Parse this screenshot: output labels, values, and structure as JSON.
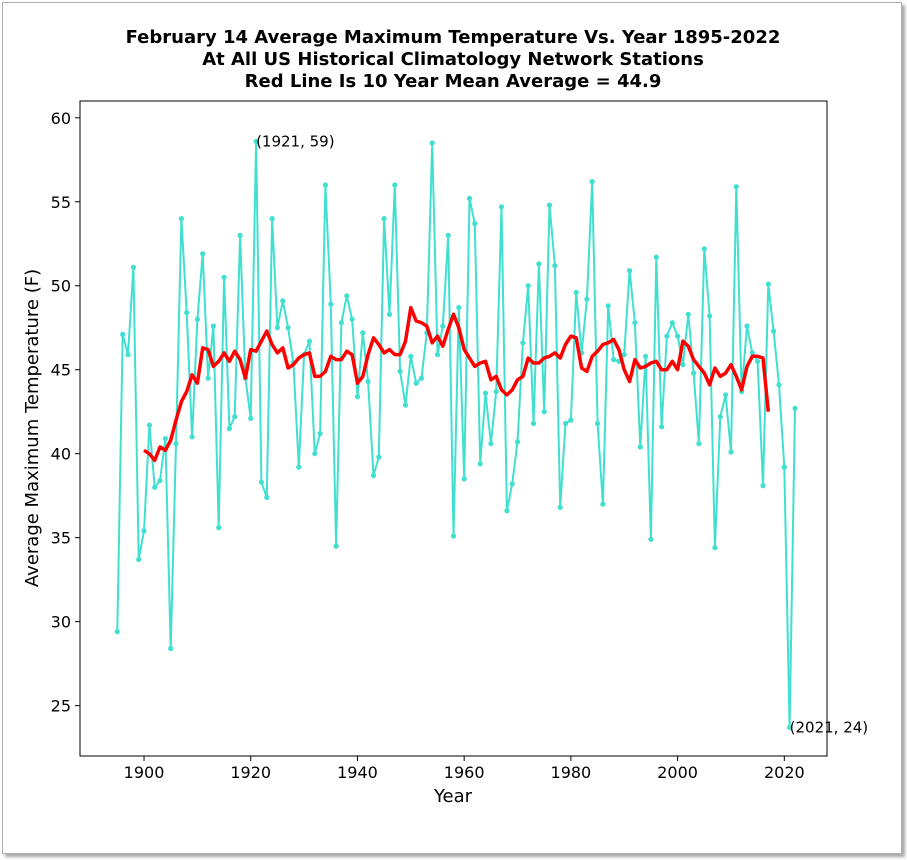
{
  "chart_data": {
    "type": "line",
    "title_lines": [
      "February 14 Average Maximum Temperature Vs. Year 1895-2022",
      "At All US Historical Climatology Network Stations",
      "Red Line Is 10 Year Mean  Average = 44.9"
    ],
    "xlabel": "Year",
    "ylabel": "Average Maximum Temperature (F)",
    "xlim": [
      1888,
      2028
    ],
    "ylim": [
      22,
      61
    ],
    "xticks": [
      1900,
      1920,
      1940,
      1960,
      1980,
      2000,
      2020
    ],
    "yticks": [
      25,
      30,
      35,
      40,
      45,
      50,
      55,
      60
    ],
    "grid": false,
    "colors": {
      "series": "#40e0d0",
      "mean": "#ff0000"
    },
    "series": [
      {
        "x": [
          1895,
          1896,
          1897,
          1898,
          1899,
          1900,
          1901,
          1902,
          1903,
          1904,
          1905,
          1906,
          1907,
          1908,
          1909,
          1910,
          1911,
          1912,
          1913,
          1914,
          1915,
          1916,
          1917,
          1918,
          1919,
          1920,
          1921,
          1922,
          1923,
          1924,
          1925,
          1926,
          1927,
          1928,
          1929,
          1930,
          1931,
          1932,
          1933,
          1934,
          1935,
          1936,
          1937,
          1938,
          1939,
          1940,
          1941,
          1942,
          1943,
          1944,
          1945,
          1946,
          1947,
          1948,
          1949,
          1950,
          1951,
          1952,
          1953,
          1954,
          1955,
          1956,
          1957,
          1958,
          1959,
          1960,
          1961,
          1962,
          1963,
          1964,
          1965,
          1966,
          1967,
          1968,
          1969,
          1970,
          1971,
          1972,
          1973,
          1974,
          1975,
          1976,
          1977,
          1978,
          1979,
          1980,
          1981,
          1982,
          1983,
          1984,
          1985,
          1986,
          1987,
          1988,
          1989,
          1990,
          1991,
          1992,
          1993,
          1994,
          1995,
          1996,
          1997,
          1998,
          1999,
          2000,
          2001,
          2002,
          2003,
          2004,
          2005,
          2006,
          2007,
          2008,
          2009,
          2010,
          2011,
          2012,
          2013,
          2014,
          2015,
          2016,
          2017,
          2018,
          2019,
          2020,
          2021,
          2022
        ],
        "values": [
          29.4,
          47.1,
          45.9,
          51.1,
          33.7,
          35.4,
          41.7,
          38.0,
          38.4,
          40.9,
          28.4,
          40.6,
          54.0,
          48.4,
          41.0,
          48.0,
          51.9,
          44.5,
          47.6,
          35.6,
          50.5,
          41.5,
          42.2,
          53.0,
          44.5,
          42.1,
          58.6,
          38.3,
          37.4,
          54.0,
          47.5,
          49.1,
          47.5,
          45.4,
          39.2,
          45.9,
          46.7,
          40.0,
          41.2,
          56.0,
          48.9,
          34.5,
          47.8,
          49.4,
          48.0,
          43.4,
          47.2,
          44.3,
          38.7,
          39.8,
          54.0,
          48.3,
          56.0,
          44.9,
          42.9,
          45.8,
          44.2,
          44.5,
          47.2,
          58.5,
          45.9,
          47.6,
          53.0,
          35.1,
          48.7,
          38.5,
          55.2,
          53.7,
          39.4,
          43.6,
          40.6,
          43.7,
          54.7,
          36.6,
          38.2,
          40.7,
          46.6,
          50.0,
          41.8,
          51.3,
          42.5,
          54.8,
          51.2,
          36.8,
          41.8,
          42.0,
          49.6,
          46.0,
          49.2,
          56.2,
          41.8,
          37.0,
          48.8,
          45.6,
          45.5,
          45.9,
          50.9,
          47.8,
          40.4,
          45.8,
          34.9,
          51.7,
          41.6,
          47.0,
          47.8,
          47.0,
          45.3,
          48.3,
          44.8,
          40.6,
          52.2,
          48.2,
          34.4,
          42.2,
          43.5,
          40.1,
          55.9,
          43.7,
          47.6,
          46.0,
          45.5,
          38.1,
          50.1,
          47.3,
          44.1,
          39.2,
          23.7,
          42.7
        ]
      },
      {
        "x": [
          1900,
          1901,
          1902,
          1903,
          1904,
          1905,
          1906,
          1907,
          1908,
          1909,
          1910,
          1911,
          1912,
          1913,
          1914,
          1915,
          1916,
          1917,
          1918,
          1919,
          1920,
          1921,
          1922,
          1923,
          1924,
          1925,
          1926,
          1927,
          1928,
          1929,
          1930,
          1931,
          1932,
          1933,
          1934,
          1935,
          1936,
          1937,
          1938,
          1939,
          1940,
          1941,
          1942,
          1943,
          1944,
          1945,
          1946,
          1947,
          1948,
          1949,
          1950,
          1951,
          1952,
          1953,
          1954,
          1955,
          1956,
          1957,
          1958,
          1959,
          1960,
          1961,
          1962,
          1963,
          1964,
          1965,
          1966,
          1967,
          1968,
          1969,
          1970,
          1971,
          1972,
          1973,
          1974,
          1975,
          1976,
          1977,
          1978,
          1979,
          1980,
          1981,
          1982,
          1983,
          1984,
          1985,
          1986,
          1987,
          1988,
          1989,
          1990,
          1991,
          1992,
          1993,
          1994,
          1995,
          1996,
          1997,
          1998,
          1999,
          2000,
          2001,
          2002,
          2003,
          2004,
          2005,
          2006,
          2007,
          2008,
          2009,
          2010,
          2011,
          2012,
          2013,
          2014,
          2015,
          2016,
          2017
        ],
        "values": [
          40.2,
          40.0,
          39.6,
          40.4,
          40.2,
          40.8,
          42.0,
          43.1,
          43.7,
          44.7,
          44.2,
          46.3,
          46.2,
          45.2,
          45.5,
          46.0,
          45.5,
          46.1,
          45.6,
          44.5,
          46.2,
          46.1,
          46.7,
          47.3,
          46.5,
          46.0,
          46.3,
          45.1,
          45.3,
          45.7,
          45.9,
          46.0,
          44.6,
          44.6,
          44.9,
          45.8,
          45.6,
          45.6,
          46.1,
          45.9,
          44.2,
          44.6,
          45.9,
          46.9,
          46.5,
          46.0,
          46.2,
          45.9,
          45.9,
          46.7,
          48.7,
          47.9,
          47.8,
          47.6,
          46.6,
          47.0,
          46.4,
          47.4,
          48.3,
          47.5,
          46.2,
          45.7,
          45.2,
          45.4,
          45.5,
          44.4,
          44.6,
          43.8,
          43.5,
          43.8,
          44.4,
          44.6,
          45.7,
          45.4,
          45.4,
          45.7,
          45.8,
          46.0,
          45.7,
          46.5,
          47.0,
          46.9,
          45.1,
          44.9,
          45.8,
          46.1,
          46.5,
          46.6,
          46.8,
          46.2,
          45.0,
          44.3,
          45.6,
          45.1,
          45.2,
          45.4,
          45.5,
          45.0,
          45.0,
          45.5,
          45.0,
          46.7,
          46.4,
          45.6,
          45.2,
          44.8,
          44.1,
          45.1,
          44.6,
          44.8,
          45.3,
          44.6,
          43.8,
          45.2,
          45.8,
          45.8,
          45.7,
          42.5
        ]
      }
    ],
    "annotations": [
      {
        "text": "(1921, 59)",
        "x": 1921,
        "y": 58.6
      },
      {
        "text": "(2021, 24)",
        "x": 2021,
        "y": 23.7
      }
    ]
  }
}
